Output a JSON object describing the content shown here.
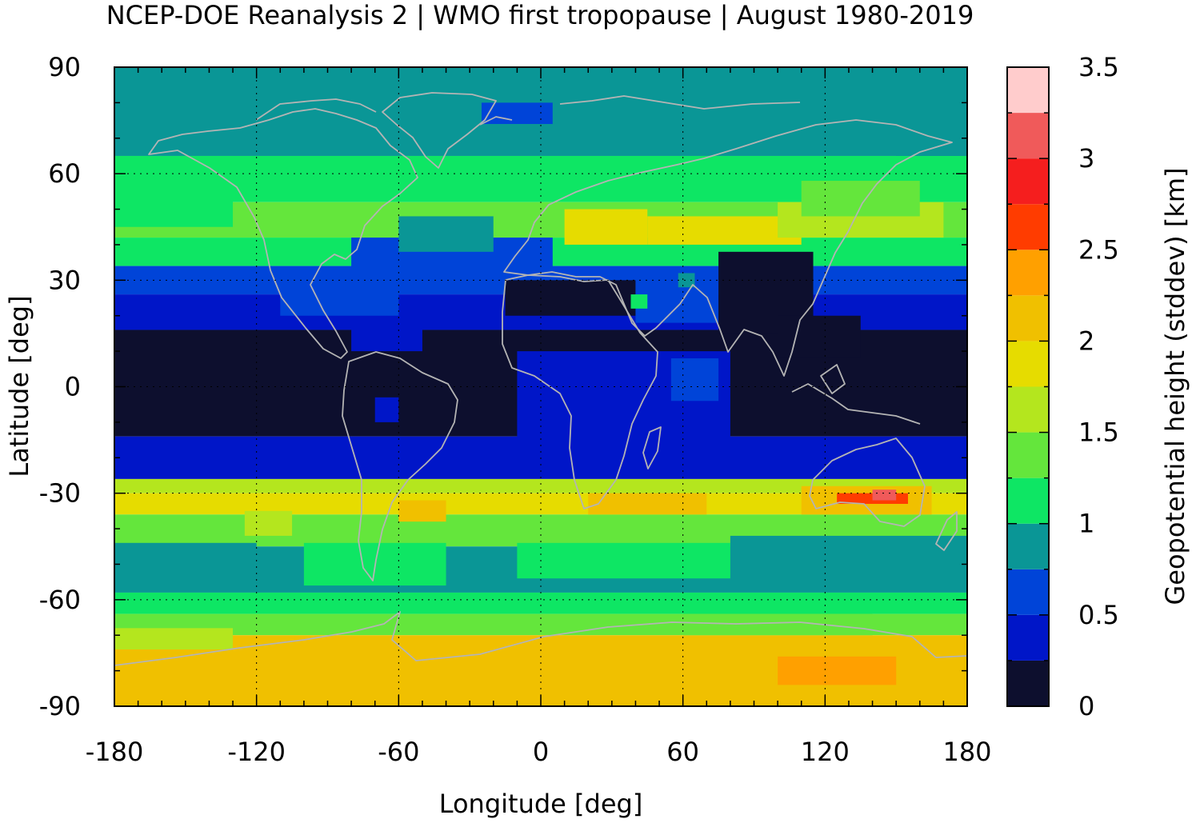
{
  "title": "NCEP-DOE Reanalysis 2 | WMO first tropopause | August 1980-2019",
  "chart_data": {
    "type": "heatmap",
    "title": "NCEP-DOE Reanalysis 2 | WMO first tropopause | August 1980-2019",
    "xlabel": "Longitude [deg]",
    "ylabel": "Latitude [deg]",
    "xlim": [
      -180,
      180
    ],
    "ylim": [
      -90,
      90
    ],
    "xticks": [
      "-180",
      "-120",
      "-60",
      "0",
      "60",
      "120",
      "180"
    ],
    "yticks": [
      "90",
      "60",
      "30",
      "0",
      "-30",
      "-60",
      "-90"
    ],
    "grid": true,
    "colorbar": {
      "label": "Geopotential height (stddev) [km]",
      "range": [
        0,
        3.5
      ],
      "step": 0.25,
      "ticks": [
        "0",
        "0.5",
        "1",
        "1.5",
        "2",
        "2.5",
        "3",
        "3.5"
      ],
      "colors": [
        "#0d0f2e",
        "#0016c8",
        "#0044d8",
        "#0a9696",
        "#0ee664",
        "#64e63c",
        "#b4e61e",
        "#e6dc00",
        "#f0c000",
        "#ffa000",
        "#ff3c00",
        "#f51e1e",
        "#f05a5a",
        "#ffcccc"
      ]
    },
    "zonal_profile": [
      {
        "lat_from": 90,
        "lat_to": 65,
        "value": 0.9
      },
      {
        "lat_from": 65,
        "lat_to": 52,
        "value": 1.2
      },
      {
        "lat_from": 52,
        "lat_to": 42,
        "value": 1.4
      },
      {
        "lat_from": 42,
        "lat_to": 34,
        "value": 1.1
      },
      {
        "lat_from": 34,
        "lat_to": 26,
        "value": 0.6
      },
      {
        "lat_from": 26,
        "lat_to": 16,
        "value": 0.4
      },
      {
        "lat_from": 16,
        "lat_to": -14,
        "value": 0.15
      },
      {
        "lat_from": -14,
        "lat_to": -26,
        "value": 0.4
      },
      {
        "lat_from": -26,
        "lat_to": -30,
        "value": 1.6
      },
      {
        "lat_from": -30,
        "lat_to": -36,
        "value": 1.9
      },
      {
        "lat_from": -36,
        "lat_to": -45,
        "value": 1.3
      },
      {
        "lat_from": -45,
        "lat_to": -58,
        "value": 0.9
      },
      {
        "lat_from": -58,
        "lat_to": -64,
        "value": 1.2
      },
      {
        "lat_from": -64,
        "lat_to": -70,
        "value": 1.4
      },
      {
        "lat_from": -70,
        "lat_to": -90,
        "value": 2.0
      }
    ],
    "features": [
      {
        "lon": [
          150,
          180
        ],
        "lat": [
          90,
          65
        ],
        "value": 0.9
      },
      {
        "lon": [
          -180,
          -130
        ],
        "lat": [
          65,
          45
        ],
        "value": 1.1
      },
      {
        "lon": [
          -25,
          5
        ],
        "lat": [
          80,
          74
        ],
        "value": 0.6
      },
      {
        "lon": [
          -80,
          5
        ],
        "lat": [
          42,
          28
        ],
        "value": 0.6
      },
      {
        "lon": [
          -60,
          -20
        ],
        "lat": [
          48,
          38
        ],
        "value": 0.9
      },
      {
        "lon": [
          -110,
          -60
        ],
        "lat": [
          32,
          20
        ],
        "value": 0.6
      },
      {
        "lon": [
          -80,
          -50
        ],
        "lat": [
          18,
          10
        ],
        "value": 0.4
      },
      {
        "lon": [
          -15,
          40
        ],
        "lat": [
          30,
          20
        ],
        "value": 0.15
      },
      {
        "lon": [
          40,
          75
        ],
        "lat": [
          30,
          18
        ],
        "value": 0.6
      },
      {
        "lon": [
          58,
          65
        ],
        "lat": [
          32,
          28
        ],
        "value": 0.9
      },
      {
        "lon": [
          38,
          45
        ],
        "lat": [
          26,
          22
        ],
        "value": 1.0
      },
      {
        "lon": [
          10,
          45
        ],
        "lat": [
          50,
          40
        ],
        "value": 1.9
      },
      {
        "lon": [
          45,
          110
        ],
        "lat": [
          48,
          40
        ],
        "value": 1.8
      },
      {
        "lon": [
          100,
          170
        ],
        "lat": [
          52,
          42
        ],
        "value": 1.7
      },
      {
        "lon": [
          110,
          160
        ],
        "lat": [
          58,
          48
        ],
        "value": 1.4
      },
      {
        "lon": [
          75,
          115
        ],
        "lat": [
          38,
          15
        ],
        "value": 0.15
      },
      {
        "lon": [
          100,
          135
        ],
        "lat": [
          20,
          8
        ],
        "value": 0.15
      },
      {
        "lon": [
          -10,
          80
        ],
        "lat": [
          10,
          -15
        ],
        "value": 0.4
      },
      {
        "lon": [
          55,
          75
        ],
        "lat": [
          8,
          -4
        ],
        "value": 0.6
      },
      {
        "lon": [
          -70,
          -60
        ],
        "lat": [
          -3,
          -10
        ],
        "value": 0.4
      },
      {
        "lon": [
          -60,
          -40
        ],
        "lat": [
          -32,
          -38
        ],
        "value": 2.1
      },
      {
        "lon": [
          20,
          70
        ],
        "lat": [
          -30,
          -36
        ],
        "value": 2.1
      },
      {
        "lon": [
          110,
          165
        ],
        "lat": [
          -28,
          -36
        ],
        "value": 2.1
      },
      {
        "lon": [
          125,
          155
        ],
        "lat": [
          -30,
          -33
        ],
        "value": 2.7
      },
      {
        "lon": [
          140,
          150
        ],
        "lat": [
          -29,
          -32
        ],
        "value": 3.0
      },
      {
        "lon": [
          -125,
          -105
        ],
        "lat": [
          -35,
          -42
        ],
        "value": 1.6
      },
      {
        "lon": [
          -180,
          -120
        ],
        "lat": [
          -44,
          -56
        ],
        "value": 0.9
      },
      {
        "lon": [
          80,
          180
        ],
        "lat": [
          -42,
          -56
        ],
        "value": 0.9
      },
      {
        "lon": [
          -100,
          -40
        ],
        "lat": [
          -44,
          -56
        ],
        "value": 1.2
      },
      {
        "lon": [
          -10,
          80
        ],
        "lat": [
          -44,
          -54
        ],
        "value": 1.2
      },
      {
        "lon": [
          -150,
          -60
        ],
        "lat": [
          -74,
          -82
        ],
        "value": 2.1
      },
      {
        "lon": [
          0,
          80
        ],
        "lat": [
          -74,
          -84
        ],
        "value": 2.1
      },
      {
        "lon": [
          100,
          150
        ],
        "lat": [
          -76,
          -84
        ],
        "value": 2.3
      },
      {
        "lon": [
          -180,
          -130
        ],
        "lat": [
          -68,
          -74
        ],
        "value": 1.7
      },
      {
        "lon": [
          60,
          140
        ],
        "lat": [
          -64,
          -70
        ],
        "value": 1.3
      }
    ]
  }
}
